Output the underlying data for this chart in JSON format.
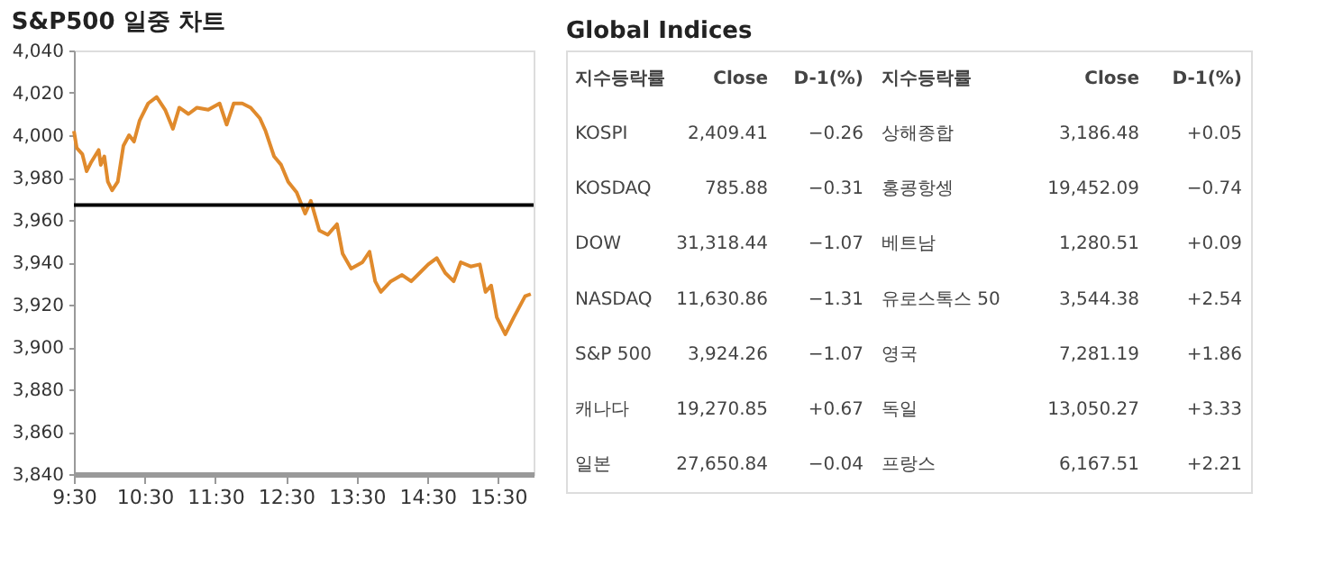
{
  "chart_data": [
    {
      "type": "line",
      "title": "S&P500 일중 차트",
      "x": [
        9.5,
        9.54,
        9.62,
        9.68,
        9.74,
        9.85,
        9.88,
        9.93,
        9.98,
        10.04,
        10.12,
        10.2,
        10.28,
        10.35,
        10.43,
        10.55,
        10.67,
        10.79,
        10.9,
        10.99,
        11.12,
        11.24,
        11.4,
        11.56,
        11.66,
        11.76,
        11.88,
        12.0,
        12.13,
        12.21,
        12.33,
        12.43,
        12.53,
        12.65,
        12.77,
        12.85,
        12.97,
        13.09,
        13.22,
        13.3,
        13.42,
        13.58,
        13.68,
        13.76,
        13.84,
        13.98,
        14.14,
        14.27,
        14.39,
        14.51,
        14.63,
        14.75,
        14.87,
        14.97,
        15.11,
        15.24,
        15.32,
        15.4,
        15.48,
        15.6,
        15.72,
        15.8,
        15.88,
        15.96
      ],
      "series": [
        {
          "color": "#e08a2c",
          "values": [
            4002,
            3994,
            3991,
            3983,
            3987,
            3993,
            3986,
            3990,
            3978,
            3974,
            3978,
            3995,
            4000,
            3997,
            4007,
            4015,
            4018,
            4012,
            4003,
            4013,
            4010,
            4013,
            4012,
            4015,
            4005,
            4015,
            4015,
            4013,
            4008,
            4002,
            3990,
            3986,
            3978,
            3973,
            3963,
            3969,
            3955,
            3953,
            3958,
            3944,
            3937,
            3940,
            3945,
            3931,
            3926,
            3931,
            3934,
            3931,
            3935,
            3939,
            3942,
            3935,
            3931,
            3940,
            3938,
            3939,
            3926,
            3929,
            3914,
            3906,
            3914,
            3919,
            3924,
            3925
          ]
        }
      ],
      "xlim": [
        9.5,
        16.0
      ],
      "xticks": [
        {
          "value": 9.5,
          "label": "9:30"
        },
        {
          "value": 10.5,
          "label": "10:30"
        },
        {
          "value": 11.5,
          "label": "11:30"
        },
        {
          "value": 12.5,
          "label": "12:30"
        },
        {
          "value": 13.5,
          "label": "13:30"
        },
        {
          "value": 14.5,
          "label": "14:30"
        },
        {
          "value": 15.5,
          "label": "15:30"
        }
      ],
      "ylim": [
        3840,
        4040
      ],
      "yticks": [
        {
          "value": 3840,
          "label": "3,840"
        },
        {
          "value": 3860,
          "label": "3,860"
        },
        {
          "value": 3880,
          "label": "3,880"
        },
        {
          "value": 3900,
          "label": "3,900"
        },
        {
          "value": 3920,
          "label": "3,920"
        },
        {
          "value": 3940,
          "label": "3,940"
        },
        {
          "value": 3960,
          "label": "3,960"
        },
        {
          "value": 3980,
          "label": "3,980"
        },
        {
          "value": 4000,
          "label": "4,000"
        },
        {
          "value": 4020,
          "label": "4,020"
        },
        {
          "value": 4040,
          "label": "4,040"
        }
      ],
      "ref_lines": [
        {
          "axis": "y",
          "value": 3967,
          "color": "#000000"
        }
      ],
      "grid": false,
      "marker": "none",
      "line_style": "solid"
    },
    {
      "type": "other",
      "title": "Global Indices",
      "annotations": [
        "지수등락률",
        "Close",
        "D-1(%)",
        "지수등락률",
        "Close",
        "D-1(%)",
        "KOSPI",
        "2,409.41",
        "−0.26",
        "상해종합",
        "3,186.48",
        "+0.05",
        "KOSDAQ",
        "785.88",
        "−0.31",
        "홍콩항셍",
        "19,452.09",
        "−0.74",
        "DOW",
        "31,318.44",
        "−1.07",
        "베트남",
        "1,280.51",
        "+0.09",
        "NASDAQ",
        "11,630.86",
        "−1.31",
        "유로스톡스 50",
        "3,544.38",
        "+2.54",
        "S&P 500",
        "3,924.26",
        "−1.07",
        "영국",
        "7,281.19",
        "+1.86",
        "캐나다",
        "19,270.85",
        "+0.67",
        "독일",
        "13,050.27",
        "+3.33",
        "일본",
        "27,650.84",
        "−0.04",
        "프랑스",
        "6,167.51",
        "+2.21"
      ]
    }
  ]
}
